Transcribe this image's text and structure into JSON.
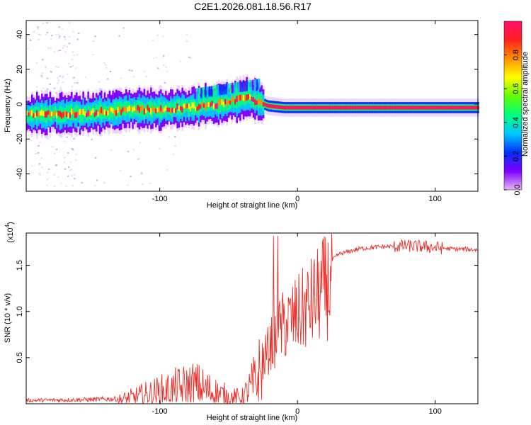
{
  "figure_title": "C2E1.2026.081.18.56.R17",
  "colors": {
    "line": "#e8302a",
    "track_core": "#e8203a",
    "frame": "#000000"
  },
  "chart_data": [
    {
      "type": "heatmap",
      "title": "C2E1.2026.081.18.56.R17",
      "xlabel": "Height of straight line (km)",
      "ylabel": "Frequency (Hz)",
      "xlim": [
        -197,
        131
      ],
      "ylim": [
        -50,
        48
      ],
      "xticks": [
        -100,
        0,
        100
      ],
      "yticks": [
        -40,
        -20,
        0,
        20,
        40
      ],
      "colorbar": {
        "label": "Normalized spectral amplitude",
        "range": [
          0,
          1
        ],
        "ticks": [
          "0.0",
          "0.2",
          "0.4",
          "0.6",
          "0.8"
        ],
        "colormap": [
          "#e6b8f5",
          "#8000ff",
          "#0030ff",
          "#00c8ff",
          "#00ff80",
          "#60ff00",
          "#ffff00",
          "#ff9000",
          "#ff2020",
          "#ff1070"
        ]
      },
      "ridge": [
        {
          "x": -197,
          "f": -6
        },
        {
          "x": -150,
          "f": -5
        },
        {
          "x": -120,
          "f": -3
        },
        {
          "x": -100,
          "f": -3
        },
        {
          "x": -80,
          "f": -2
        },
        {
          "x": -60,
          "f": 0
        },
        {
          "x": -45,
          "f": 2
        },
        {
          "x": -38,
          "f": 4
        },
        {
          "x": -30,
          "f": 2
        },
        {
          "x": -22,
          "f": -1
        },
        {
          "x": -10,
          "f": -2
        },
        {
          "x": 0,
          "f": -2
        },
        {
          "x": 50,
          "f": -2
        },
        {
          "x": 100,
          "f": -2
        },
        {
          "x": 131,
          "f": -2
        }
      ]
    },
    {
      "type": "line",
      "xlabel": "Height of straight line (km)",
      "ylabel": "SNR (10 * v/v)",
      "scale_label": "(x10",
      "scale_exponent": "4",
      "xlim": [
        -197,
        131
      ],
      "ylim": [
        0,
        1.85
      ],
      "xticks": [
        -100,
        0,
        100
      ],
      "yticks": [
        "0.5",
        "1.0",
        "1.5"
      ],
      "envelope": [
        {
          "x": -197,
          "y": 0.04
        },
        {
          "x": -150,
          "y": 0.05
        },
        {
          "x": -130,
          "y": 0.06
        },
        {
          "x": -110,
          "y": 0.14
        },
        {
          "x": -90,
          "y": 0.22
        },
        {
          "x": -75,
          "y": 0.28
        },
        {
          "x": -60,
          "y": 0.18
        },
        {
          "x": -48,
          "y": 0.1
        },
        {
          "x": -40,
          "y": 0.1
        },
        {
          "x": -32,
          "y": 0.3
        },
        {
          "x": -25,
          "y": 0.55
        },
        {
          "x": -18,
          "y": 0.8
        },
        {
          "x": -10,
          "y": 1.0
        },
        {
          "x": 0,
          "y": 1.12
        },
        {
          "x": 10,
          "y": 1.28
        },
        {
          "x": 20,
          "y": 1.48
        },
        {
          "x": 30,
          "y": 1.62
        },
        {
          "x": 45,
          "y": 1.68
        },
        {
          "x": 60,
          "y": 1.7
        },
        {
          "x": 80,
          "y": 1.71
        },
        {
          "x": 95,
          "y": 1.7
        },
        {
          "x": 110,
          "y": 1.68
        },
        {
          "x": 131,
          "y": 1.67
        }
      ]
    }
  ]
}
